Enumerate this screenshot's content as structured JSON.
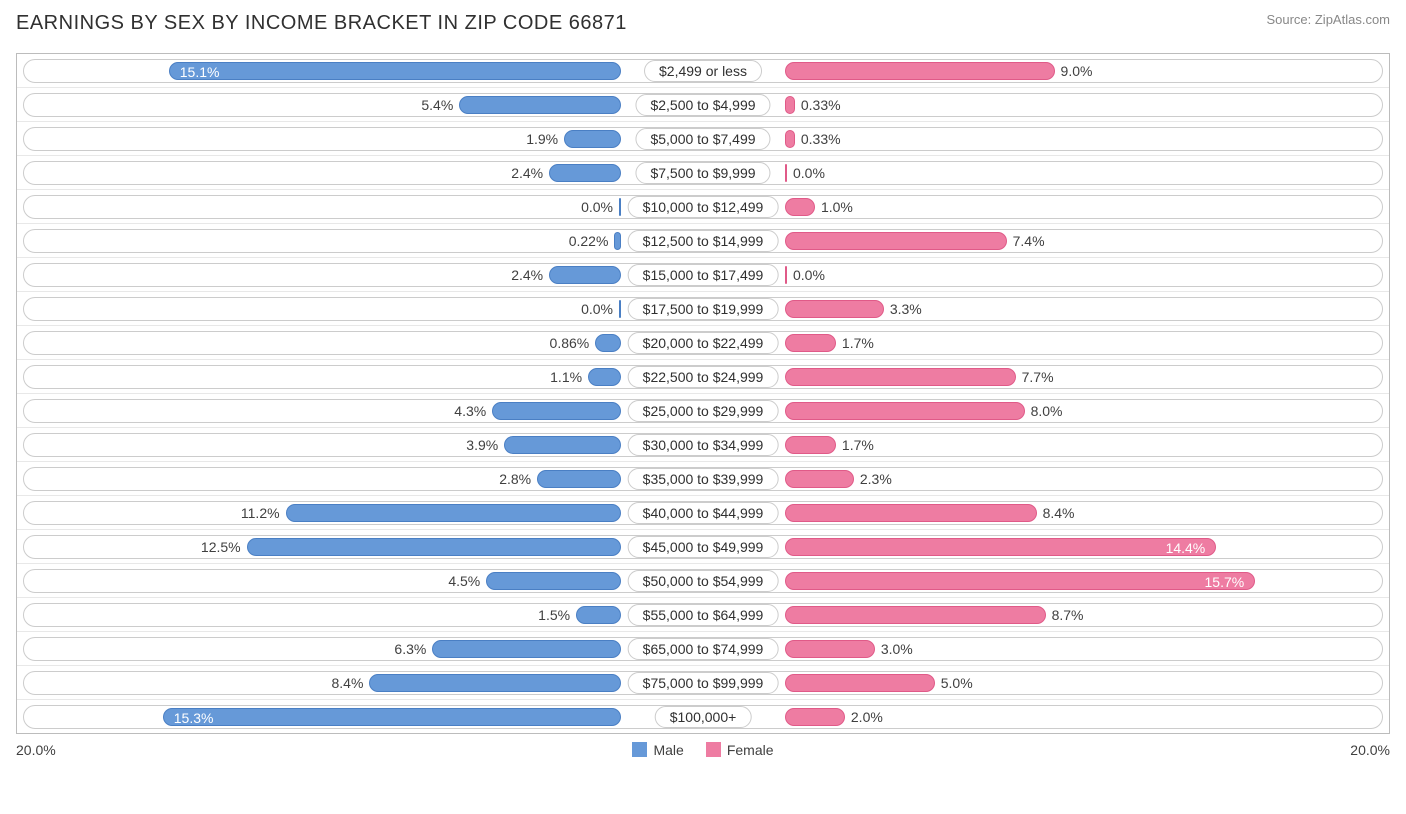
{
  "title": "EARNINGS BY SEX BY INCOME BRACKET IN ZIP CODE 66871",
  "source": "Source: ZipAtlas.com",
  "chart": {
    "type": "diverging-bar",
    "max_pct": 20.0,
    "axis_left_label": "20.0%",
    "axis_right_label": "20.0%",
    "male_color": "#6699d8",
    "male_border": "#4a7fc4",
    "female_color": "#ee7ca2",
    "female_border": "#e05a88",
    "track_border": "#cccccc",
    "grid_color": "#e8e8e8",
    "legend": [
      {
        "label": "Male",
        "color": "#6699d8"
      },
      {
        "label": "Female",
        "color": "#ee7ca2"
      }
    ],
    "rows": [
      {
        "category": "$2,499 or less",
        "male": 15.1,
        "female": 9.0,
        "male_label": "15.1%",
        "female_label": "9.0%",
        "male_inside": true
      },
      {
        "category": "$2,500 to $4,999",
        "male": 5.4,
        "female": 0.33,
        "male_label": "5.4%",
        "female_label": "0.33%",
        "male_inside": false
      },
      {
        "category": "$5,000 to $7,499",
        "male": 1.9,
        "female": 0.33,
        "male_label": "1.9%",
        "female_label": "0.33%",
        "male_inside": false
      },
      {
        "category": "$7,500 to $9,999",
        "male": 2.4,
        "female": 0.0,
        "male_label": "2.4%",
        "female_label": "0.0%",
        "male_inside": false
      },
      {
        "category": "$10,000 to $12,499",
        "male": 0.0,
        "female": 1.0,
        "male_label": "0.0%",
        "female_label": "1.0%",
        "male_inside": false
      },
      {
        "category": "$12,500 to $14,999",
        "male": 0.22,
        "female": 7.4,
        "male_label": "0.22%",
        "female_label": "7.4%",
        "male_inside": false
      },
      {
        "category": "$15,000 to $17,499",
        "male": 2.4,
        "female": 0.0,
        "male_label": "2.4%",
        "female_label": "0.0%",
        "male_inside": false
      },
      {
        "category": "$17,500 to $19,999",
        "male": 0.0,
        "female": 3.3,
        "male_label": "0.0%",
        "female_label": "3.3%",
        "male_inside": false
      },
      {
        "category": "$20,000 to $22,499",
        "male": 0.86,
        "female": 1.7,
        "male_label": "0.86%",
        "female_label": "1.7%",
        "male_inside": false
      },
      {
        "category": "$22,500 to $24,999",
        "male": 1.1,
        "female": 7.7,
        "male_label": "1.1%",
        "female_label": "7.7%",
        "male_inside": false
      },
      {
        "category": "$25,000 to $29,999",
        "male": 4.3,
        "female": 8.0,
        "male_label": "4.3%",
        "female_label": "8.0%",
        "male_inside": false
      },
      {
        "category": "$30,000 to $34,999",
        "male": 3.9,
        "female": 1.7,
        "male_label": "3.9%",
        "female_label": "1.7%",
        "male_inside": false
      },
      {
        "category": "$35,000 to $39,999",
        "male": 2.8,
        "female": 2.3,
        "male_label": "2.8%",
        "female_label": "2.3%",
        "male_inside": false
      },
      {
        "category": "$40,000 to $44,999",
        "male": 11.2,
        "female": 8.4,
        "male_label": "11.2%",
        "female_label": "8.4%",
        "male_inside": false
      },
      {
        "category": "$45,000 to $49,999",
        "male": 12.5,
        "female": 14.4,
        "male_label": "12.5%",
        "female_label": "14.4%",
        "male_inside": false,
        "female_inside": true
      },
      {
        "category": "$50,000 to $54,999",
        "male": 4.5,
        "female": 15.7,
        "male_label": "4.5%",
        "female_label": "15.7%",
        "male_inside": false,
        "female_inside": true
      },
      {
        "category": "$55,000 to $64,999",
        "male": 1.5,
        "female": 8.7,
        "male_label": "1.5%",
        "female_label": "8.7%",
        "male_inside": false
      },
      {
        "category": "$65,000 to $74,999",
        "male": 6.3,
        "female": 3.0,
        "male_label": "6.3%",
        "female_label": "3.0%",
        "male_inside": false
      },
      {
        "category": "$75,000 to $99,999",
        "male": 8.4,
        "female": 5.0,
        "male_label": "8.4%",
        "female_label": "5.0%",
        "male_inside": false
      },
      {
        "category": "$100,000+",
        "male": 15.3,
        "female": 2.0,
        "male_label": "15.3%",
        "female_label": "2.0%",
        "male_inside": true
      }
    ]
  }
}
